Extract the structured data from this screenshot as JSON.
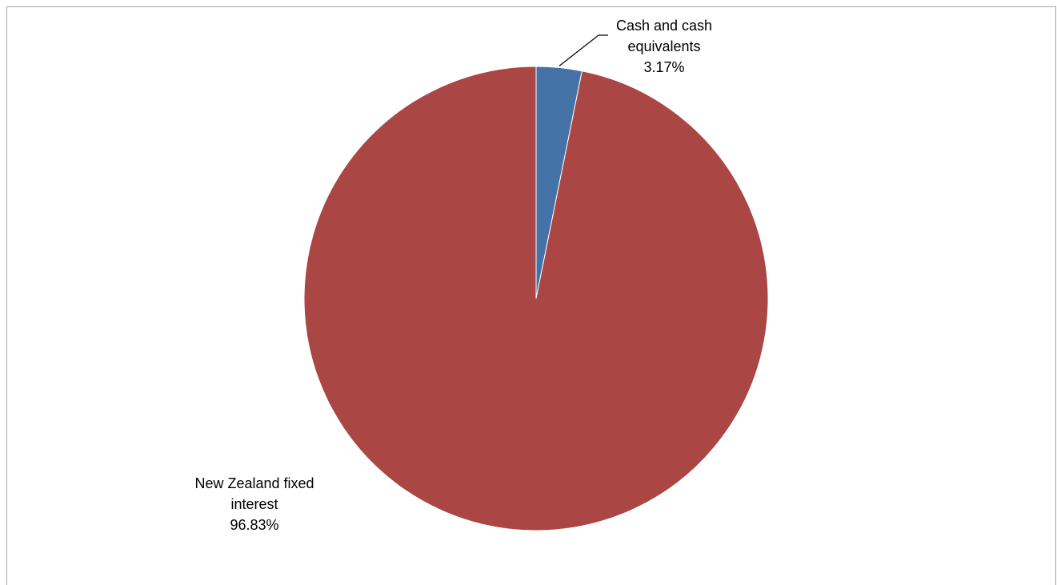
{
  "chart_data": {
    "type": "pie",
    "title": "",
    "start_angle_deg": 0,
    "direction": "clockwise",
    "slices": [
      {
        "name": "Cash and cash equivalents",
        "label_lines": [
          "Cash and cash",
          "equivalents"
        ],
        "percent_label": "3.17%",
        "value": 3.17,
        "color": "#4572a7"
      },
      {
        "name": "New Zealand fixed interest",
        "label_lines": [
          "New Zealand fixed",
          "interest"
        ],
        "percent_label": "96.83%",
        "value": 96.83,
        "color": "#aa4643"
      }
    ]
  }
}
